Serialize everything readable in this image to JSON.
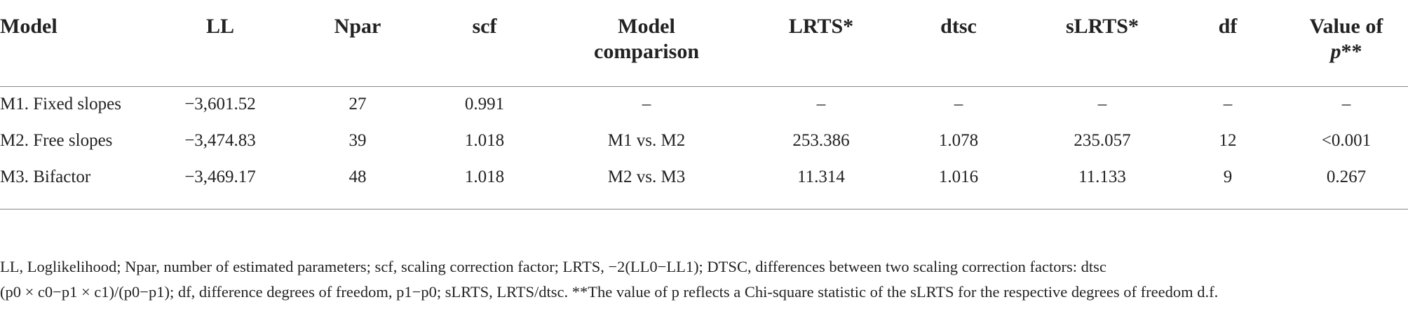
{
  "table": {
    "header": [
      "Model",
      "LL",
      "Npar",
      "scf",
      "Model comparison",
      "LRTS*",
      "dtsc",
      "sLRTS*",
      "df",
      {
        "text": "Value of",
        "italic": "p",
        "suffix": "**"
      }
    ],
    "rows": [
      [
        "M1. Fixed slopes",
        "−3,601.52",
        "27",
        "0.991",
        "–",
        "–",
        "–",
        "–",
        "–",
        "–"
      ],
      [
        "M2. Free slopes",
        "−3,474.83",
        "39",
        "1.018",
        "M1 vs. M2",
        "253.386",
        "1.078",
        "235.057",
        "12",
        "<0.001"
      ],
      [
        "M3. Bifactor",
        "−3,469.17",
        "48",
        "1.018",
        "M2 vs. M3",
        "11.314",
        "1.016",
        "11.133",
        "9",
        "0.267"
      ]
    ]
  },
  "footnote": [
    "LL, Loglikelihood; Npar, number of estimated parameters; scf, scaling correction factor; LRTS, −2(LL0−LL1); DTSC, differences between two scaling correction factors: dtsc",
    "(p0 × c0−p1 × c1)/(p0−p1); df, difference degrees of freedom, p1−p0; sLRTS, LRTS/dtsc. **The value of p reflects a Chi-square statistic of the sLRTS for the respective degrees of freedom d.f."
  ]
}
